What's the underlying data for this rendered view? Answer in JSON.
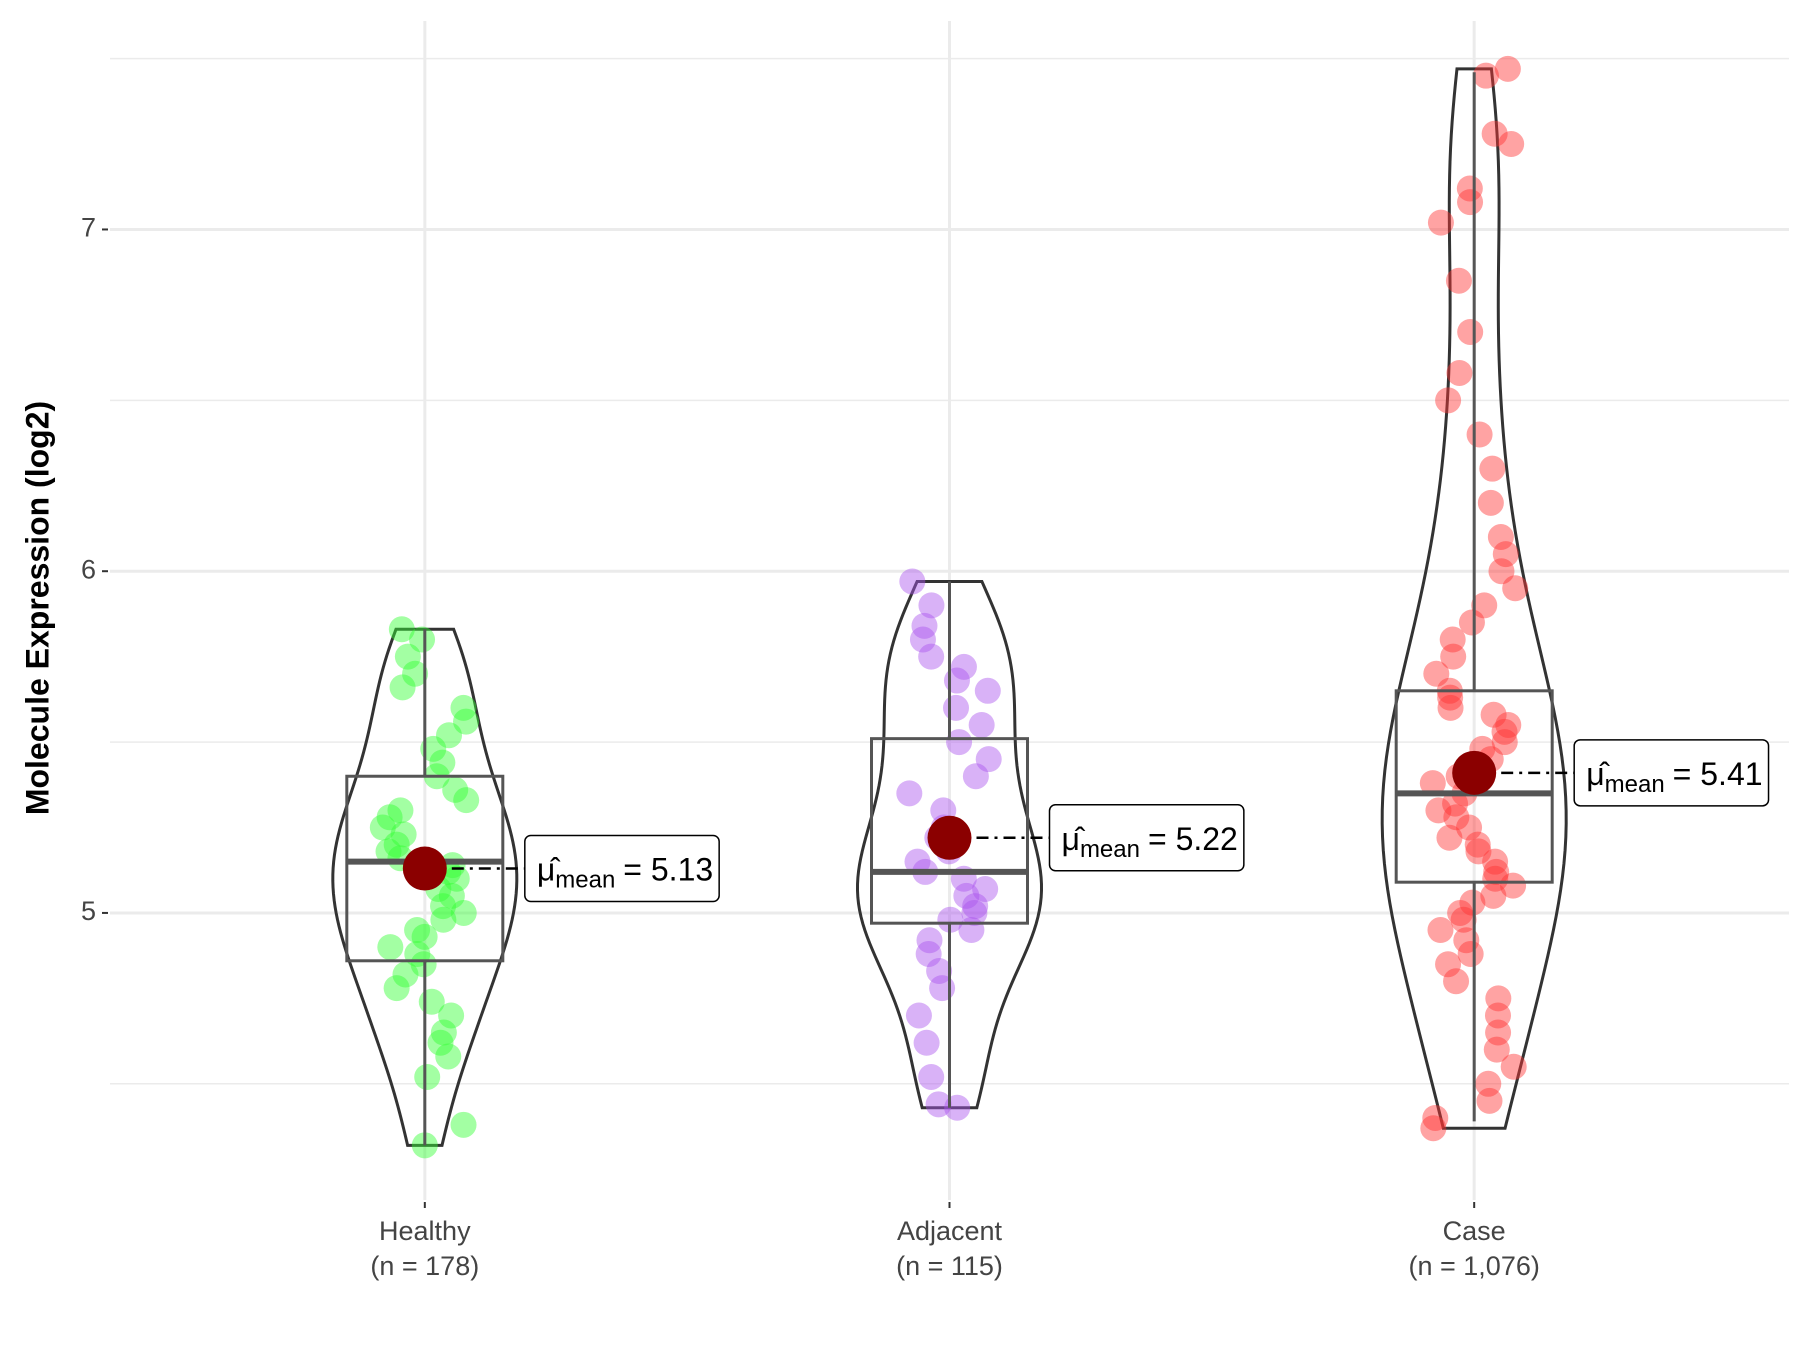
{
  "chart_data": {
    "type": "violin",
    "y_label": "Molecule Expression (log2)",
    "ylim": [
      4.16,
      7.61
    ],
    "yticks": [
      5,
      6,
      7
    ],
    "minor_yticks": [
      4.5,
      5.5,
      6.5,
      7.5
    ],
    "grid": true,
    "mean_symbol": "μ̂",
    "mean_subscript": "mean",
    "groups": [
      {
        "name": "Healthy",
        "n_label": "(n = 178)",
        "color": "#33ff33",
        "box": {
          "min": 4.32,
          "q1": 4.86,
          "median": 5.15,
          "q3": 5.4,
          "max": 5.83
        },
        "mean": 5.13,
        "mean_label": "= 5.13",
        "points": [
          4.32,
          4.38,
          4.52,
          4.58,
          4.62,
          4.65,
          4.7,
          4.74,
          4.78,
          4.82,
          4.85,
          4.88,
          4.9,
          4.93,
          4.95,
          4.98,
          5.0,
          5.02,
          5.05,
          5.07,
          5.1,
          5.12,
          5.14,
          5.16,
          5.18,
          5.2,
          5.23,
          5.25,
          5.28,
          5.3,
          5.33,
          5.36,
          5.4,
          5.44,
          5.48,
          5.52,
          5.56,
          5.6,
          5.66,
          5.7,
          5.75,
          5.8,
          5.83
        ]
      },
      {
        "name": "Adjacent",
        "n_label": "(n = 115)",
        "color": "#aa55ee",
        "box": {
          "min": 4.43,
          "q1": 4.97,
          "median": 5.12,
          "q3": 5.51,
          "max": 5.97
        },
        "mean": 5.22,
        "mean_label": "= 5.22",
        "points": [
          4.43,
          4.44,
          4.52,
          4.62,
          4.7,
          4.78,
          4.83,
          4.88,
          4.92,
          4.95,
          4.98,
          5.0,
          5.02,
          5.05,
          5.07,
          5.1,
          5.12,
          5.15,
          5.18,
          5.22,
          5.25,
          5.3,
          5.35,
          5.4,
          5.45,
          5.5,
          5.55,
          5.6,
          5.65,
          5.68,
          5.72,
          5.75,
          5.8,
          5.84,
          5.9,
          5.97
        ]
      },
      {
        "name": "Case",
        "n_label": "(n = 1,076)",
        "color": "#ff3333",
        "box": {
          "min": 4.39,
          "q1": 5.09,
          "median": 5.35,
          "q3": 5.65,
          "max": 7.46
        },
        "mean": 5.41,
        "mean_label": "= 5.41",
        "points": [
          4.37,
          4.4,
          4.45,
          4.5,
          4.55,
          4.6,
          4.65,
          4.7,
          4.75,
          4.8,
          4.85,
          4.88,
          4.92,
          4.95,
          4.98,
          5.0,
          5.03,
          5.05,
          5.08,
          5.1,
          5.12,
          5.15,
          5.18,
          5.2,
          5.22,
          5.25,
          5.28,
          5.3,
          5.32,
          5.35,
          5.38,
          5.4,
          5.42,
          5.45,
          5.48,
          5.5,
          5.53,
          5.55,
          5.58,
          5.6,
          5.63,
          5.65,
          5.7,
          5.75,
          5.8,
          5.85,
          5.9,
          5.95,
          6.0,
          6.05,
          6.1,
          6.2,
          6.3,
          6.4,
          6.5,
          6.58,
          6.7,
          6.85,
          7.02,
          7.08,
          7.12,
          7.25,
          7.28,
          7.45,
          7.47
        ]
      }
    ]
  }
}
